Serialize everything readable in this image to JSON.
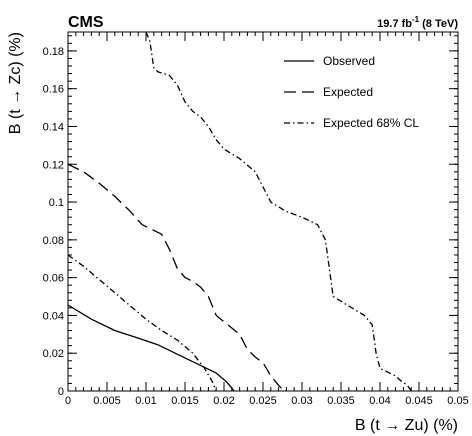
{
  "chart_data": {
    "type": "line",
    "experiment_label": "CMS",
    "lumi_label": {
      "value": "19.7 fb",
      "superscript": "-1",
      "suffix": "(8 TeV)"
    },
    "xlabel": "B (t → Zu) (%)",
    "ylabel": "B (t → Zc) (%)",
    "xlim": [
      0,
      0.05
    ],
    "ylim": [
      0,
      0.19
    ],
    "x_ticks": [
      0,
      0.005,
      0.01,
      0.015,
      0.02,
      0.025,
      0.03,
      0.035,
      0.04,
      0.045,
      0.05
    ],
    "x_tick_labels": [
      "0",
      "0.005",
      "0.01",
      "0.015",
      "0.02",
      "0.025",
      "0.03",
      "0.035",
      "0.04",
      "0.045",
      "0.05"
    ],
    "y_ticks": [
      0,
      0.02,
      0.04,
      0.06,
      0.08,
      0.1,
      0.12,
      0.14,
      0.16,
      0.18
    ],
    "y_tick_labels": [
      "0",
      "0.02",
      "0.04",
      "0.06",
      "0.08",
      "0.1",
      "0.12",
      "0.14",
      "0.16",
      "0.18"
    ],
    "grid": false,
    "legend_position": "top-right",
    "series": [
      {
        "name": "Observed",
        "style": "solid",
        "points": [
          [
            0,
            0.0455
          ],
          [
            0.003,
            0.038
          ],
          [
            0.006,
            0.032
          ],
          [
            0.009,
            0.028
          ],
          [
            0.0115,
            0.0245
          ],
          [
            0.014,
            0.0195
          ],
          [
            0.0165,
            0.0145
          ],
          [
            0.019,
            0.0095
          ],
          [
            0.0203,
            0.005
          ],
          [
            0.021,
            0.0015
          ],
          [
            0.0213,
            0
          ]
        ]
      },
      {
        "name": "Expected",
        "style": "dashed",
        "points": [
          [
            0,
            0.12
          ],
          [
            0.002,
            0.116
          ],
          [
            0.004,
            0.11
          ],
          [
            0.006,
            0.103
          ],
          [
            0.008,
            0.095
          ],
          [
            0.0095,
            0.088
          ],
          [
            0.011,
            0.085
          ],
          [
            0.012,
            0.083
          ],
          [
            0.013,
            0.075
          ],
          [
            0.014,
            0.065
          ],
          [
            0.015,
            0.06
          ],
          [
            0.016,
            0.058
          ],
          [
            0.017,
            0.055
          ],
          [
            0.018,
            0.05
          ],
          [
            0.019,
            0.04
          ],
          [
            0.0205,
            0.035
          ],
          [
            0.022,
            0.03
          ],
          [
            0.023,
            0.022
          ],
          [
            0.024,
            0.018
          ],
          [
            0.025,
            0.015
          ],
          [
            0.026,
            0.008
          ],
          [
            0.027,
            0.003
          ],
          [
            0.0277,
            0
          ]
        ]
      },
      {
        "name": "Expected 68% CL",
        "style": "dash-dot",
        "points": [
          [
            0,
            0.072
          ],
          [
            0.002,
            0.066
          ],
          [
            0.004,
            0.059
          ],
          [
            0.006,
            0.052
          ],
          [
            0.008,
            0.045
          ],
          [
            0.01,
            0.038
          ],
          [
            0.012,
            0.032
          ],
          [
            0.014,
            0.027
          ],
          [
            0.016,
            0.02
          ],
          [
            0.0175,
            0.012
          ],
          [
            0.0185,
            0.005
          ],
          [
            0.019,
            0
          ]
        ]
      },
      {
        "name": "",
        "style": "dash-dot",
        "points": [
          [
            0.01,
            0.19
          ],
          [
            0.0105,
            0.185
          ],
          [
            0.011,
            0.171
          ],
          [
            0.0115,
            0.169
          ],
          [
            0.013,
            0.167
          ],
          [
            0.014,
            0.162
          ],
          [
            0.015,
            0.153
          ],
          [
            0.016,
            0.148
          ],
          [
            0.017,
            0.145
          ],
          [
            0.018,
            0.14
          ],
          [
            0.019,
            0.133
          ],
          [
            0.02,
            0.128
          ],
          [
            0.022,
            0.123
          ],
          [
            0.024,
            0.116
          ],
          [
            0.025,
            0.108
          ],
          [
            0.026,
            0.1
          ],
          [
            0.028,
            0.095
          ],
          [
            0.03,
            0.092
          ],
          [
            0.032,
            0.088
          ],
          [
            0.033,
            0.08
          ],
          [
            0.0335,
            0.065
          ],
          [
            0.034,
            0.05
          ],
          [
            0.036,
            0.045
          ],
          [
            0.038,
            0.04
          ],
          [
            0.039,
            0.035
          ],
          [
            0.0395,
            0.02
          ],
          [
            0.04,
            0.012
          ],
          [
            0.041,
            0.01
          ],
          [
            0.042,
            0.008
          ],
          [
            0.0425,
            0.006
          ],
          [
            0.0435,
            0.003
          ],
          [
            0.044,
            0
          ]
        ]
      }
    ]
  }
}
